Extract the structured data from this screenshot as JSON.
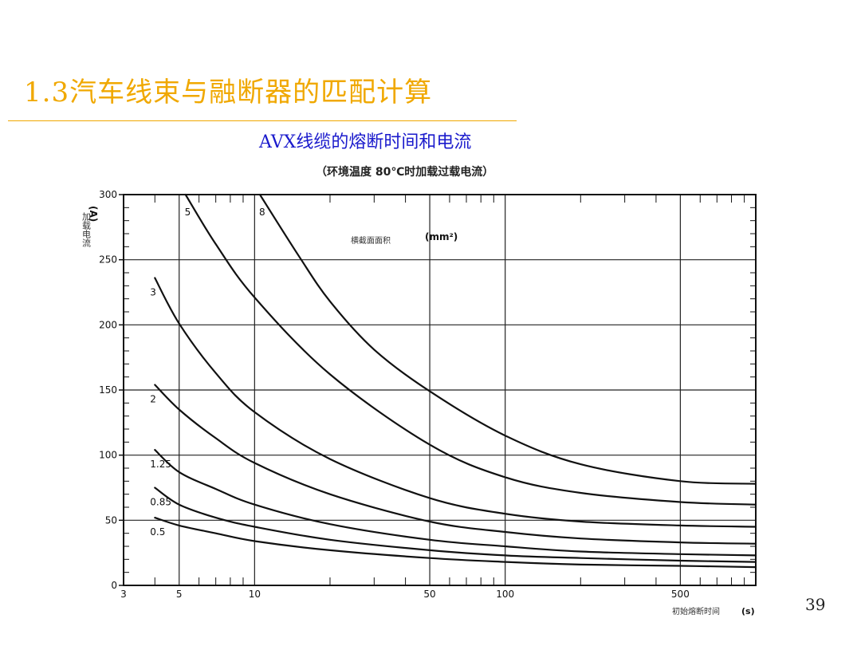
{
  "slide": {
    "title": "1.3汽车线束与融断器的匹配计算",
    "page_number": "39"
  },
  "chart_data": {
    "type": "line",
    "title": "AVX线缆的熔断时间和电流",
    "subtitle": "（环境温度 80℃时加载过载电流）",
    "ylabel": "加载电流",
    "ylabel_unit": "(A)",
    "xlabel": "初始熔断时间",
    "xlabel_unit": "(s)",
    "legend_title": "横截面面积",
    "legend_unit": "(mm²)",
    "x_scale": "log",
    "xlim": [
      3,
      1000
    ],
    "ylim": [
      0,
      300
    ],
    "x_ticks": [
      "3",
      "5",
      "10",
      "50",
      "100",
      "500"
    ],
    "x_tick_values": [
      3,
      5,
      10,
      50,
      100,
      500
    ],
    "y_ticks": [
      "0",
      "50",
      "100",
      "150",
      "200",
      "250",
      "300"
    ],
    "y_tick_values": [
      0,
      50,
      100,
      150,
      200,
      250,
      300
    ],
    "grid": true,
    "series": [
      {
        "name": "0.5",
        "label": "0.5",
        "x": [
          4,
          5,
          7,
          10,
          20,
          50,
          100,
          200,
          500,
          1000
        ],
        "y": [
          52,
          46,
          40,
          34,
          27,
          21,
          18,
          16,
          15,
          14
        ]
      },
      {
        "name": "0.85",
        "label": "0.85",
        "x": [
          4,
          5,
          7,
          10,
          20,
          50,
          100,
          200,
          500,
          1000
        ],
        "y": [
          75,
          62,
          52,
          45,
          35,
          27,
          23,
          21,
          19,
          18
        ]
      },
      {
        "name": "1.25",
        "label": "1.25",
        "x": [
          4,
          5,
          7,
          10,
          20,
          50,
          100,
          200,
          500,
          1000
        ],
        "y": [
          104,
          87,
          74,
          62,
          47,
          35,
          30,
          26,
          24,
          23
        ]
      },
      {
        "name": "2",
        "label": "2",
        "x": [
          4,
          5,
          7,
          10,
          20,
          50,
          100,
          200,
          500,
          1000
        ],
        "y": [
          154,
          135,
          113,
          94,
          70,
          49,
          41,
          36,
          33,
          32
        ]
      },
      {
        "name": "3",
        "label": "3",
        "x": [
          4,
          5,
          7,
          10,
          20,
          50,
          100,
          200,
          500,
          1000
        ],
        "y": [
          236,
          201,
          163,
          133,
          97,
          67,
          55,
          49,
          46,
          45
        ]
      },
      {
        "name": "5",
        "label": "5",
        "x": [
          5.3,
          7,
          10,
          20,
          50,
          100,
          200,
          500,
          1000
        ],
        "y": [
          300,
          262,
          221,
          162,
          108,
          83,
          71,
          64,
          62
        ]
      },
      {
        "name": "8",
        "label": "8",
        "x": [
          10.5,
          15,
          20,
          30,
          50,
          100,
          200,
          500,
          1000
        ],
        "y": [
          300,
          253,
          218,
          181,
          149,
          115,
          93,
          80,
          78
        ]
      }
    ]
  }
}
